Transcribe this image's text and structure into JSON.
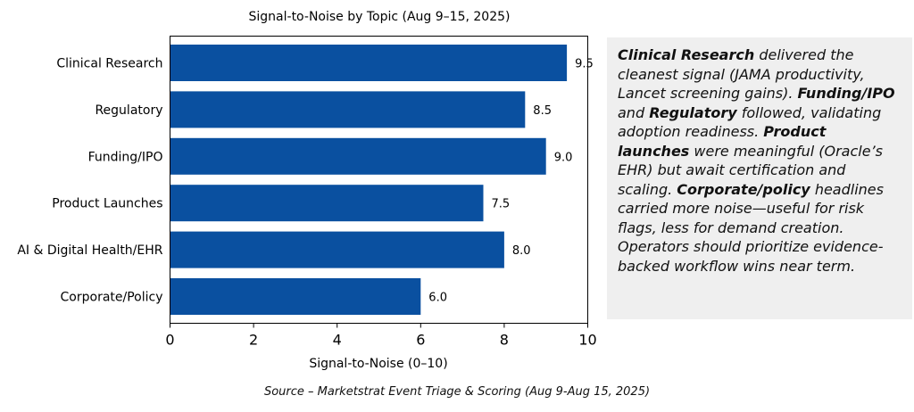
{
  "chart_data": {
    "type": "bar",
    "orientation": "horizontal",
    "title": "Signal-to-Noise by Topic (Aug 9–15, 2025)",
    "xlabel": "Signal-to-Noise (0–10)",
    "ylabel": "",
    "xlim": [
      0,
      10
    ],
    "xticks": [
      "0",
      "2",
      "4",
      "6",
      "8",
      "10"
    ],
    "categories": [
      "Clinical Research",
      "Regulatory",
      "Funding/IPO",
      "Product Launches",
      "AI & Digital Health/EHR",
      "Corporate/Policy"
    ],
    "values": [
      9.5,
      8.5,
      9.0,
      7.5,
      8.0,
      6.0
    ],
    "value_labels": [
      "9.5",
      "8.5",
      "9.0",
      "7.5",
      "8.0",
      "6.0"
    ],
    "bar_color": "#0a50a0",
    "grid": false,
    "legend": "none"
  },
  "callout": {
    "segments": [
      {
        "text": "Clinical Research",
        "bold": true
      },
      {
        "text": " delivered the cleanest signal (JAMA productivity, Lancet screening gains). ",
        "bold": false
      },
      {
        "text": "Funding/IPO",
        "bold": true
      },
      {
        "text": " and ",
        "bold": false
      },
      {
        "text": "Regulatory",
        "bold": true
      },
      {
        "text": " followed, validating adoption readiness. ",
        "bold": false
      },
      {
        "text": "Product launches",
        "bold": true
      },
      {
        "text": " were meaningful (Oracle’s EHR) but await certification and scaling. ",
        "bold": false
      },
      {
        "text": "Corporate/policy",
        "bold": true
      },
      {
        "text": " headlines carried more noise—useful for risk flags, less for demand creation. Operators should prioritize evidence-backed workflow wins near term.",
        "bold": false
      }
    ]
  },
  "source": "Source – Marketstrat Event Triage & Scoring (Aug 9-Aug 15, 2025)"
}
